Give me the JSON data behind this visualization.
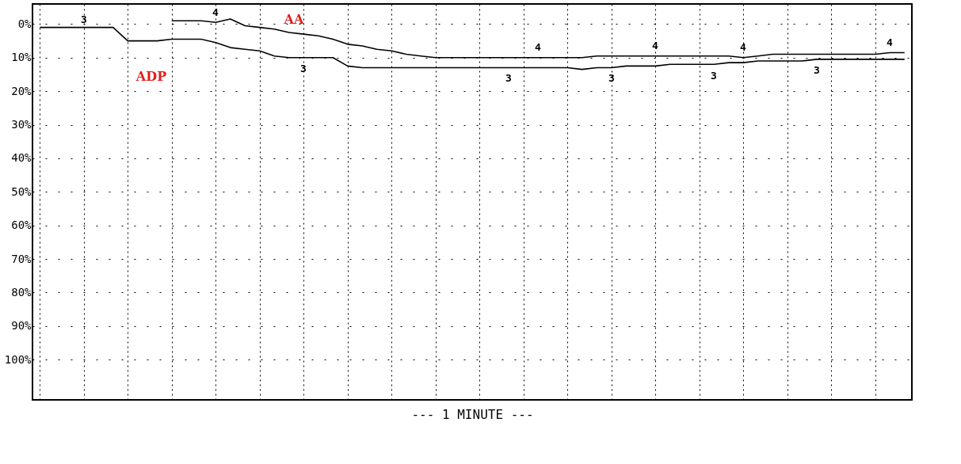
{
  "chart_data": {
    "type": "line",
    "xlabel": "--- 1 MINUTE ---",
    "categories": [
      null,
      null,
      null,
      null,
      null,
      null,
      null,
      null,
      null,
      null,
      null,
      null,
      null,
      null,
      null,
      null,
      null,
      null,
      null,
      null,
      null,
      null,
      null,
      null,
      null,
      null,
      null,
      null,
      null,
      null,
      null,
      null,
      null,
      null,
      null,
      null,
      null,
      null,
      null,
      null,
      null,
      null,
      null,
      null,
      null,
      null,
      null,
      null,
      null,
      null,
      null,
      null,
      null,
      null,
      null,
      null,
      null,
      null,
      null,
      null
    ],
    "series": [
      {
        "color": "#000000",
        "values": [
          1,
          1,
          1,
          1,
          1,
          1,
          5,
          5,
          5,
          4.5,
          4.5,
          4.5,
          5.5,
          7,
          7.5,
          8,
          9.5,
          10,
          10,
          10,
          10,
          12.5,
          13,
          13,
          13,
          13,
          13,
          13,
          13,
          13,
          13,
          13,
          13,
          13,
          13,
          13,
          13,
          13.5,
          13,
          13,
          12.5,
          12.5,
          12.5,
          12,
          12,
          12,
          12,
          11.5,
          11.5,
          11,
          11,
          11,
          11,
          10.5,
          10.5,
          10.5,
          10.5,
          10.5,
          10.5,
          10.5
        ]
      },
      {
        "color": "#000000",
        "values": [
          null,
          null,
          null,
          null,
          null,
          null,
          null,
          null,
          null,
          -1,
          -1,
          -1,
          -0.5,
          -1.5,
          0.5,
          1,
          1.5,
          2.5,
          3,
          3.5,
          4.5,
          6,
          6.5,
          7.5,
          8,
          9,
          9.5,
          10,
          10,
          10,
          10,
          10,
          10,
          10,
          10,
          10,
          10,
          10,
          9.5,
          9.5,
          9.5,
          9.5,
          9.5,
          9.5,
          9.5,
          9.5,
          9.5,
          9.5,
          10,
          9.5,
          9,
          9,
          9,
          9,
          9,
          9,
          9,
          9,
          8.5,
          8.5
        ]
      }
    ],
    "annotations": [
      "ADP",
      "AA",
      "3",
      "3",
      "3",
      "3",
      "3",
      "3",
      "4",
      "4",
      "4",
      "4",
      "4"
    ],
    "ylim": [
      112,
      -6
    ],
    "yticks": [
      {
        "value": 0,
        "label": "0%"
      },
      {
        "value": 10,
        "label": "10%"
      },
      {
        "value": 20,
        "label": "20%"
      },
      {
        "value": 30,
        "label": "30%"
      },
      {
        "value": 40,
        "label": "40%"
      },
      {
        "value": 50,
        "label": "50%"
      },
      {
        "value": 60,
        "label": "60%"
      },
      {
        "value": 70,
        "label": "70%"
      },
      {
        "value": 80,
        "label": "80%"
      },
      {
        "value": 90,
        "label": "90%"
      },
      {
        "value": 100,
        "label": "100%"
      }
    ],
    "grid": true,
    "line_style": "solid",
    "marker": "none"
  }
}
